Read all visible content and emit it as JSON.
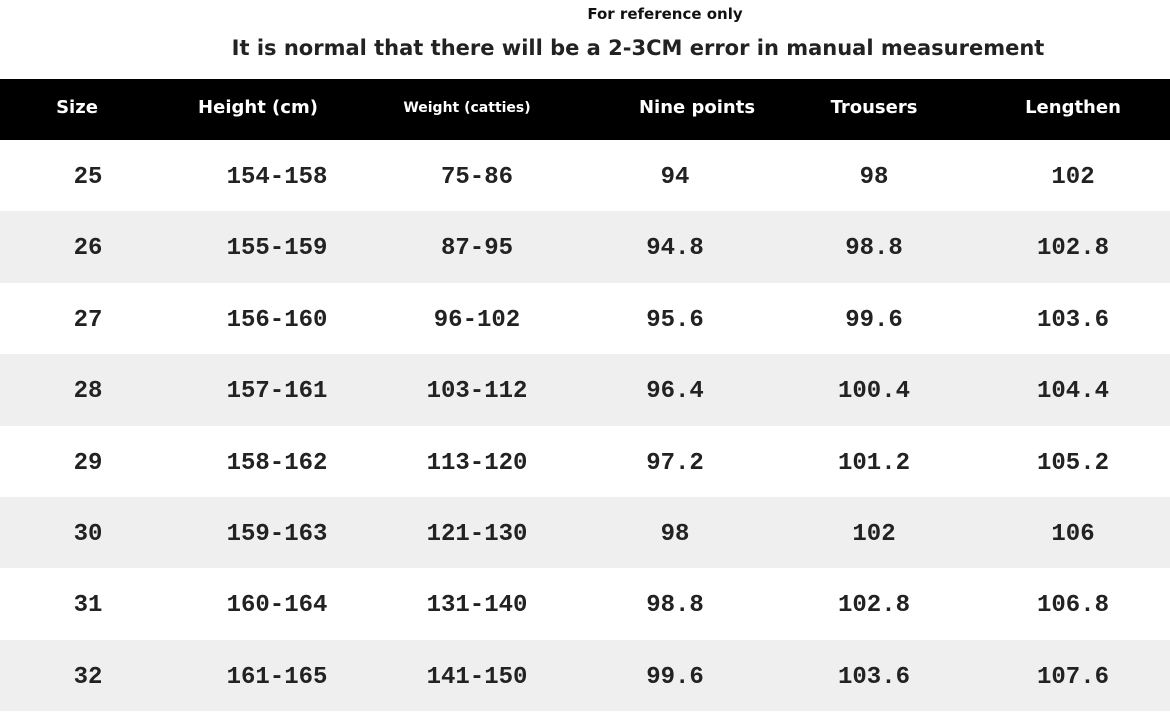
{
  "header": {
    "note": "For reference only",
    "title": "It is normal that there will be a 2-3CM error in manual measurement"
  },
  "table": {
    "columns": [
      "Size",
      "Height (cm)",
      "Weight (catties)",
      "Nine points",
      "Trousers",
      "Lengthen"
    ],
    "rows": [
      [
        "25",
        "154-158",
        "75-86",
        "94",
        "98",
        "102"
      ],
      [
        "26",
        "155-159",
        "87-95",
        "94.8",
        "98.8",
        "102.8"
      ],
      [
        "27",
        "156-160",
        "96-102",
        "95.6",
        "99.6",
        "103.6"
      ],
      [
        "28",
        "157-161",
        "103-112",
        "96.4",
        "100.4",
        "104.4"
      ],
      [
        "29",
        "158-162",
        "113-120",
        "97.2",
        "101.2",
        "105.2"
      ],
      [
        "30",
        "159-163",
        "121-130",
        "98",
        "102",
        "106"
      ],
      [
        "31",
        "160-164",
        "131-140",
        "98.8",
        "102.8",
        "106.8"
      ],
      [
        "32",
        "161-165",
        "141-150",
        "99.6",
        "103.6",
        "107.6"
      ]
    ]
  }
}
